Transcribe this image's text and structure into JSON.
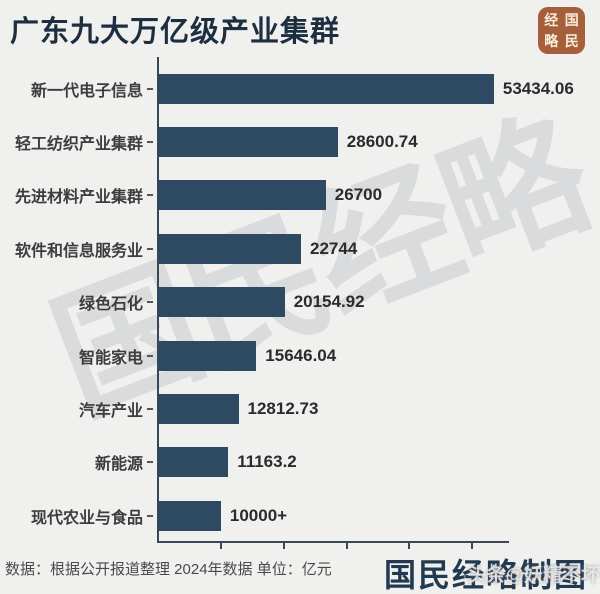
{
  "title": "广东九大万亿级产业集群",
  "seal": {
    "name": "国民经略",
    "grid_chars": [
      "经",
      "国",
      "略",
      "民"
    ],
    "bg_color": "#a65f3b",
    "text_color": "#f6ecd9"
  },
  "watermarks": {
    "diagonal_text": "国民经略",
    "handle_overlay": "头条@妖精不坏"
  },
  "chart_data": {
    "type": "bar",
    "orientation": "horizontal",
    "title": "广东九大万亿级产业集群",
    "categories": [
      "新一代电子信息",
      "轻工纺织产业集群",
      "先进材料产业集群",
      "软件和信息服务业",
      "绿色石化",
      "智能家电",
      "汽车产业",
      "新能源",
      "现代农业与食品"
    ],
    "values": [
      53434.06,
      28600.74,
      26700,
      22744,
      20154.92,
      15646.04,
      12812.73,
      11163.2,
      10000
    ],
    "value_labels": [
      "53434.06",
      "28600.74",
      "26700",
      "22744",
      "20154.92",
      "15646.04",
      "12812.73",
      "11163.2",
      "10000+"
    ],
    "xlabel": "",
    "ylabel": "",
    "unit": "亿元",
    "year": "2024",
    "xlim": [
      0,
      56000
    ],
    "x_ticks": [
      10000,
      20000,
      30000,
      40000,
      50000
    ],
    "x_tick_labels_visible": false,
    "grid": false,
    "bar_color": "#2e4a62",
    "axis_color": "#3b4754"
  },
  "footer": {
    "source_note": "数据：根据公开报道整理 2024年数据 单位：亿元",
    "credit": "国民经略制图"
  }
}
